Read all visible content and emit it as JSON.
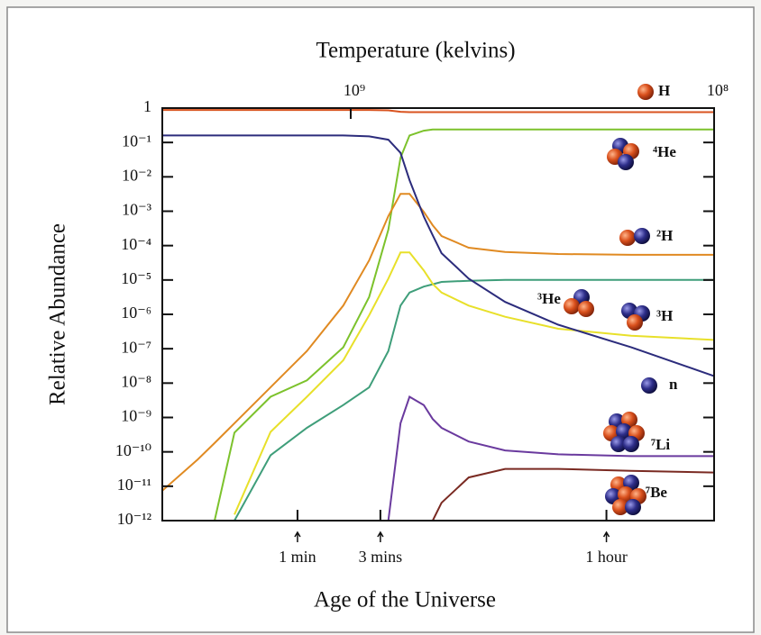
{
  "chart_data": {
    "type": "line",
    "x2label": "Temperature (kelvins)",
    "xlabel": "Age of the Universe",
    "ylabel": "Relative Abundance",
    "xscale": "log",
    "yscale": "log",
    "xlim": [
      10,
      15000
    ],
    "ylim": [
      1e-12,
      1
    ],
    "x2lim": [
      3300000000.0,
      100000000.0
    ],
    "xticks": [
      {
        "value": 60,
        "label": "1 min"
      },
      {
        "value": 180,
        "label": "3 mins"
      },
      {
        "value": 3600,
        "label": "1 hour"
      }
    ],
    "x2ticks": [
      {
        "value": 1000000000.0,
        "label": "10⁹"
      },
      {
        "value": 100000000.0,
        "label": "10⁸"
      }
    ],
    "yticks": [
      1,
      {
        "value": 0.1,
        "label": "10⁻¹"
      },
      {
        "value": 0.01,
        "label": "10⁻²"
      },
      {
        "value": 0.001,
        "label": "10⁻³"
      },
      {
        "value": 0.0001,
        "label": "10⁻⁴"
      },
      {
        "value": 1e-05,
        "label": "10⁻⁵"
      },
      {
        "value": 1e-06,
        "label": "10⁻⁶"
      },
      {
        "value": 1e-07,
        "label": "10⁻⁷"
      },
      {
        "value": 1e-08,
        "label": "10⁻⁸"
      },
      {
        "value": 1e-09,
        "label": "10⁻⁹"
      },
      {
        "value": 1e-10,
        "label": "10⁻¹⁰"
      },
      {
        "value": 1e-11,
        "label": "10⁻¹¹"
      },
      {
        "value": 1e-12,
        "label": "10⁻¹²"
      }
    ],
    "x": [
      10,
      16,
      20,
      26,
      42,
      68,
      110,
      155,
      200,
      235,
      265,
      320,
      360,
      405,
      580,
      940,
      1900,
      5000,
      15000
    ],
    "series": [
      {
        "name": "H",
        "color": "#d9531f",
        "values": [
          0.88,
          0.88,
          0.88,
          0.88,
          0.88,
          0.88,
          0.88,
          0.88,
          0.86,
          0.78,
          0.76,
          0.76,
          0.76,
          0.76,
          0.76,
          0.76,
          0.76,
          0.76,
          0.76
        ]
      },
      {
        "name": "⁴He",
        "color": "#7cc22c",
        "values": [
          null,
          null,
          1e-12,
          3.6e-10,
          4e-09,
          1.2e-08,
          1.1e-07,
          3.2e-06,
          0.00029,
          0.036,
          0.16,
          0.22,
          0.24,
          0.24,
          0.24,
          0.24,
          0.24,
          0.24,
          0.24
        ]
      },
      {
        "name": "²H",
        "color": "#e08a22",
        "values": [
          7.4e-12,
          6e-11,
          1.8e-10,
          6.8e-10,
          7.6e-09,
          8.6e-08,
          1.8e-06,
          3.7e-05,
          0.00072,
          0.0032,
          0.0032,
          0.00096,
          0.00039,
          0.00019,
          8.7e-05,
          6.5e-05,
          5.7e-05,
          5.4e-05,
          5.4e-05
        ]
      },
      {
        "name": "³He",
        "color": "#3f9e7a",
        "values": [
          null,
          null,
          null,
          1e-12,
          8e-11,
          5e-10,
          2.3e-09,
          7.5e-09,
          8.6e-08,
          1.8e-06,
          4.3e-06,
          6.4e-06,
          7.5e-06,
          8.8e-06,
          9.5e-06,
          1e-05,
          1e-05,
          1e-05,
          1e-05
        ]
      },
      {
        "name": "³H",
        "color": "#e8e02a",
        "values": [
          null,
          null,
          null,
          1.5e-12,
          3.8e-10,
          4e-09,
          4.6e-08,
          9.4e-07,
          1.1e-05,
          6.3e-05,
          6.3e-05,
          1.9e-05,
          7.7e-06,
          4.3e-06,
          1.8e-06,
          8.5e-07,
          3.8e-07,
          2.4e-07,
          1.8e-07
        ]
      },
      {
        "name": "n",
        "color": "#2c2c7c",
        "values": [
          0.16,
          0.16,
          0.16,
          0.16,
          0.16,
          0.16,
          0.16,
          0.15,
          0.12,
          0.05,
          0.008,
          0.0007,
          0.0002,
          6e-05,
          1.1e-05,
          2.3e-06,
          5e-07,
          1.1e-07,
          1.6e-08
        ]
      },
      {
        "name": "⁷Li",
        "color": "#6a3a9e",
        "values": [
          null,
          null,
          null,
          null,
          null,
          null,
          null,
          null,
          1e-12,
          6.8e-10,
          4e-09,
          2.3e-09,
          9e-10,
          5e-10,
          2e-10,
          1.1e-10,
          8.5e-11,
          7.5e-11,
          7.5e-11
        ]
      },
      {
        "name": "⁷Be",
        "color": "#7a2a22",
        "values": [
          null,
          null,
          null,
          null,
          null,
          null,
          null,
          null,
          null,
          null,
          null,
          null,
          1e-12,
          3.3e-12,
          1.8e-11,
          3.2e-11,
          3.2e-11,
          2.8e-11,
          2.5e-11
        ]
      }
    ]
  }
}
